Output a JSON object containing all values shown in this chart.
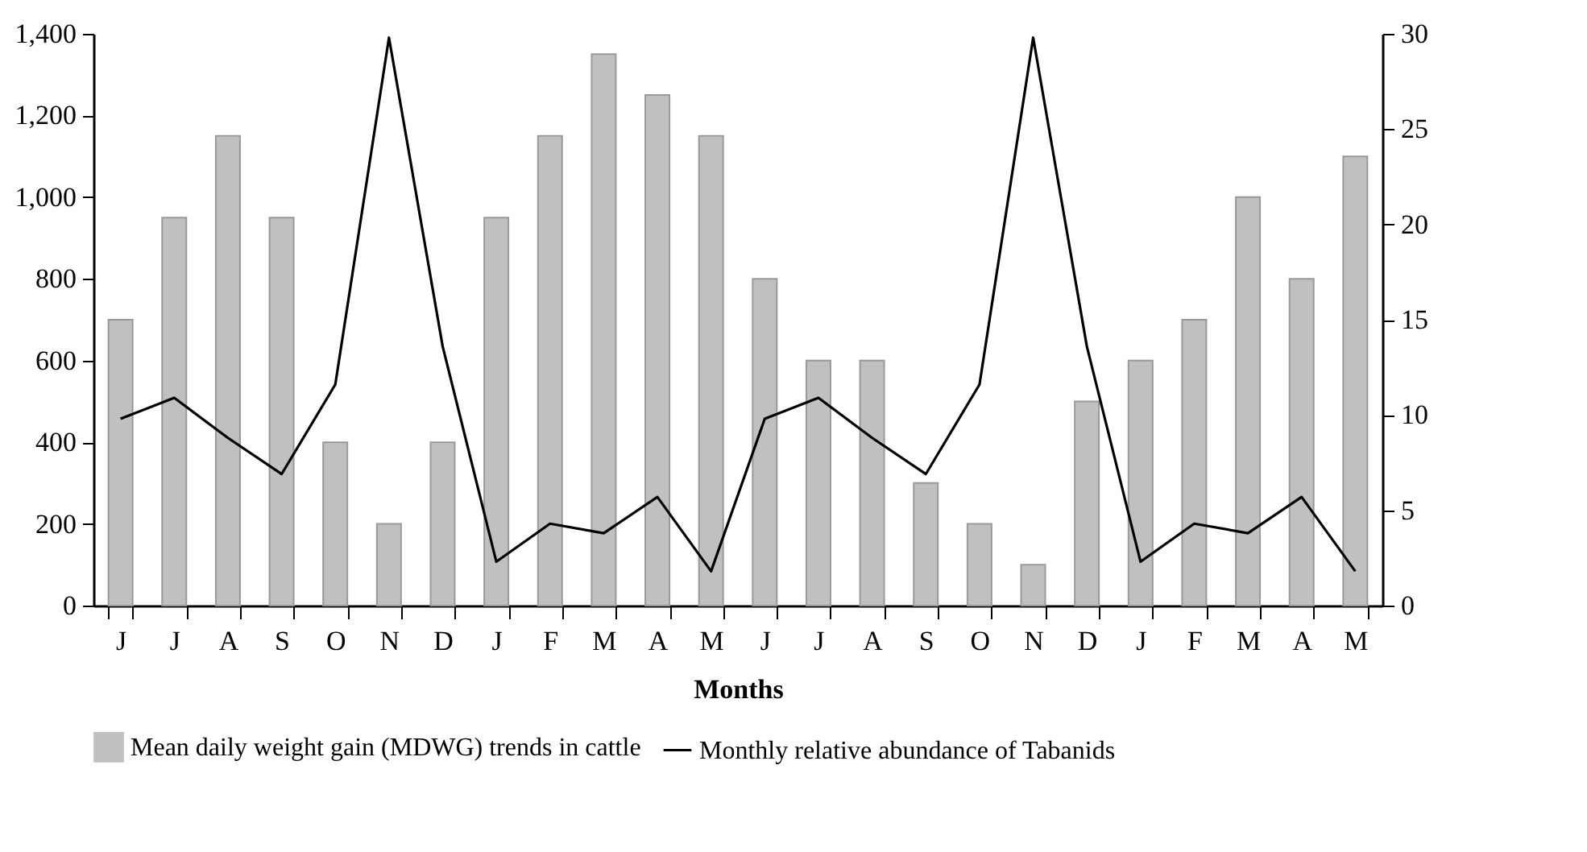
{
  "chart_data": {
    "type": "bar",
    "xlabel": "Months",
    "categories": [
      "J",
      "J",
      "A",
      "S",
      "O",
      "N",
      "D",
      "J",
      "F",
      "M",
      "A",
      "M",
      "J",
      "J",
      "A",
      "S",
      "O",
      "N",
      "D",
      "J",
      "F",
      "M",
      "A",
      "M"
    ],
    "series": [
      {
        "name": "Mean daily weight gain (MDWG) trends in cattle",
        "color": "#c0c0c0",
        "values": [
          700,
          950,
          1150,
          950,
          400,
          200,
          400,
          950,
          1150,
          1350,
          1250,
          1150,
          800,
          600,
          600,
          300,
          200,
          100,
          500,
          600,
          700,
          1000,
          800,
          1100
        ]
      },
      {
        "name": "Monthly relative abundance of Tabanids",
        "type": "line",
        "axis": "y2",
        "color": "#000000",
        "values": [
          9.8,
          10.9,
          8.8,
          6.9,
          11.6,
          29.8,
          13.6,
          2.3,
          4.3,
          3.8,
          5.7,
          1.8,
          9.8,
          10.9,
          8.8,
          6.9,
          11.6,
          29.8,
          13.6,
          2.3,
          4.3,
          3.8,
          5.7,
          1.8
        ]
      }
    ],
    "ylim": [
      0,
      1400
    ],
    "yticks": [
      0,
      200,
      400,
      600,
      800,
      {
        "value": 1000,
        "label": "1,000"
      },
      {
        "value": 1200,
        "label": "1,200"
      },
      {
        "value": 1400,
        "label": "1,400"
      }
    ],
    "y2lim": [
      0,
      30
    ],
    "y2ticks": [
      0,
      5,
      10,
      15,
      20,
      25,
      30
    ],
    "grid": false,
    "legend": "bottom",
    "marker": "none",
    "line_style": "solid"
  }
}
